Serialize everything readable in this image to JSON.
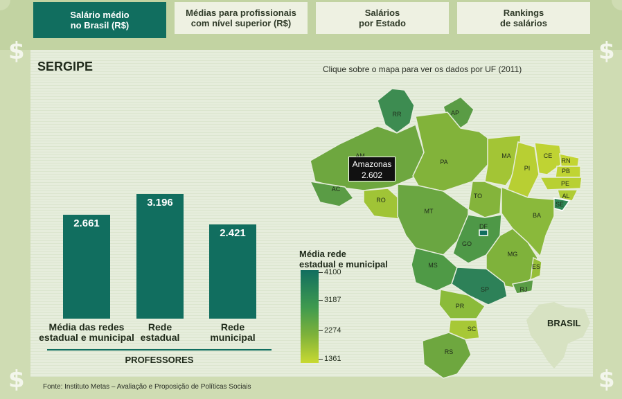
{
  "tabs": [
    {
      "line1": "Salário médio",
      "line2": "no Brasil (R$)"
    },
    {
      "line1": "Médias para profissionais",
      "line2": "com nível superior (R$)"
    },
    {
      "line1": "Salários",
      "line2": "por Estado"
    },
    {
      "line1": "Rankings",
      "line2": "de salários"
    }
  ],
  "dollar_symbol": "$",
  "state_title": "SERGIPE",
  "map_hint": "Clique sobre o mapa para ver os dados por UF (2011)",
  "chart_data": {
    "type": "bar",
    "categories": [
      "Média das redes estadual e municipal",
      "Rede estadual",
      "Rede municipal"
    ],
    "category_lines": [
      [
        "Média das redes",
        "estadual e municipal"
      ],
      [
        "Rede",
        "estadual"
      ],
      [
        "Rede",
        "municipal"
      ]
    ],
    "values": [
      2661,
      3196,
      2421
    ],
    "value_labels": [
      "2.661",
      "3.196",
      "2.421"
    ],
    "xlabel": "PROFESSORES",
    "color": "#116e5f"
  },
  "legend": {
    "title_line1": "Média rede",
    "title_line2": "estadual e municipal",
    "values": [
      "4100",
      "3187",
      "2274",
      "1361"
    ],
    "color_high": "#116e5f",
    "color_low": "#c8d932"
  },
  "map": {
    "state_codes": [
      "RR",
      "AP",
      "AM",
      "PA",
      "MA",
      "CE",
      "RN",
      "PB",
      "PI",
      "PE",
      "AL",
      "SE",
      "AC",
      "RO",
      "TO",
      "BA",
      "MT",
      "DF",
      "GO",
      "MG",
      "ES",
      "MS",
      "SP",
      "RJ",
      "PR",
      "SC",
      "RS"
    ],
    "tooltip_state": "Amazonas",
    "tooltip_value": "2.602",
    "inset_label": "BRASIL"
  },
  "source": "Fonte: Instituto Metas – Avaliação e Proposição de Políticas Sociais"
}
